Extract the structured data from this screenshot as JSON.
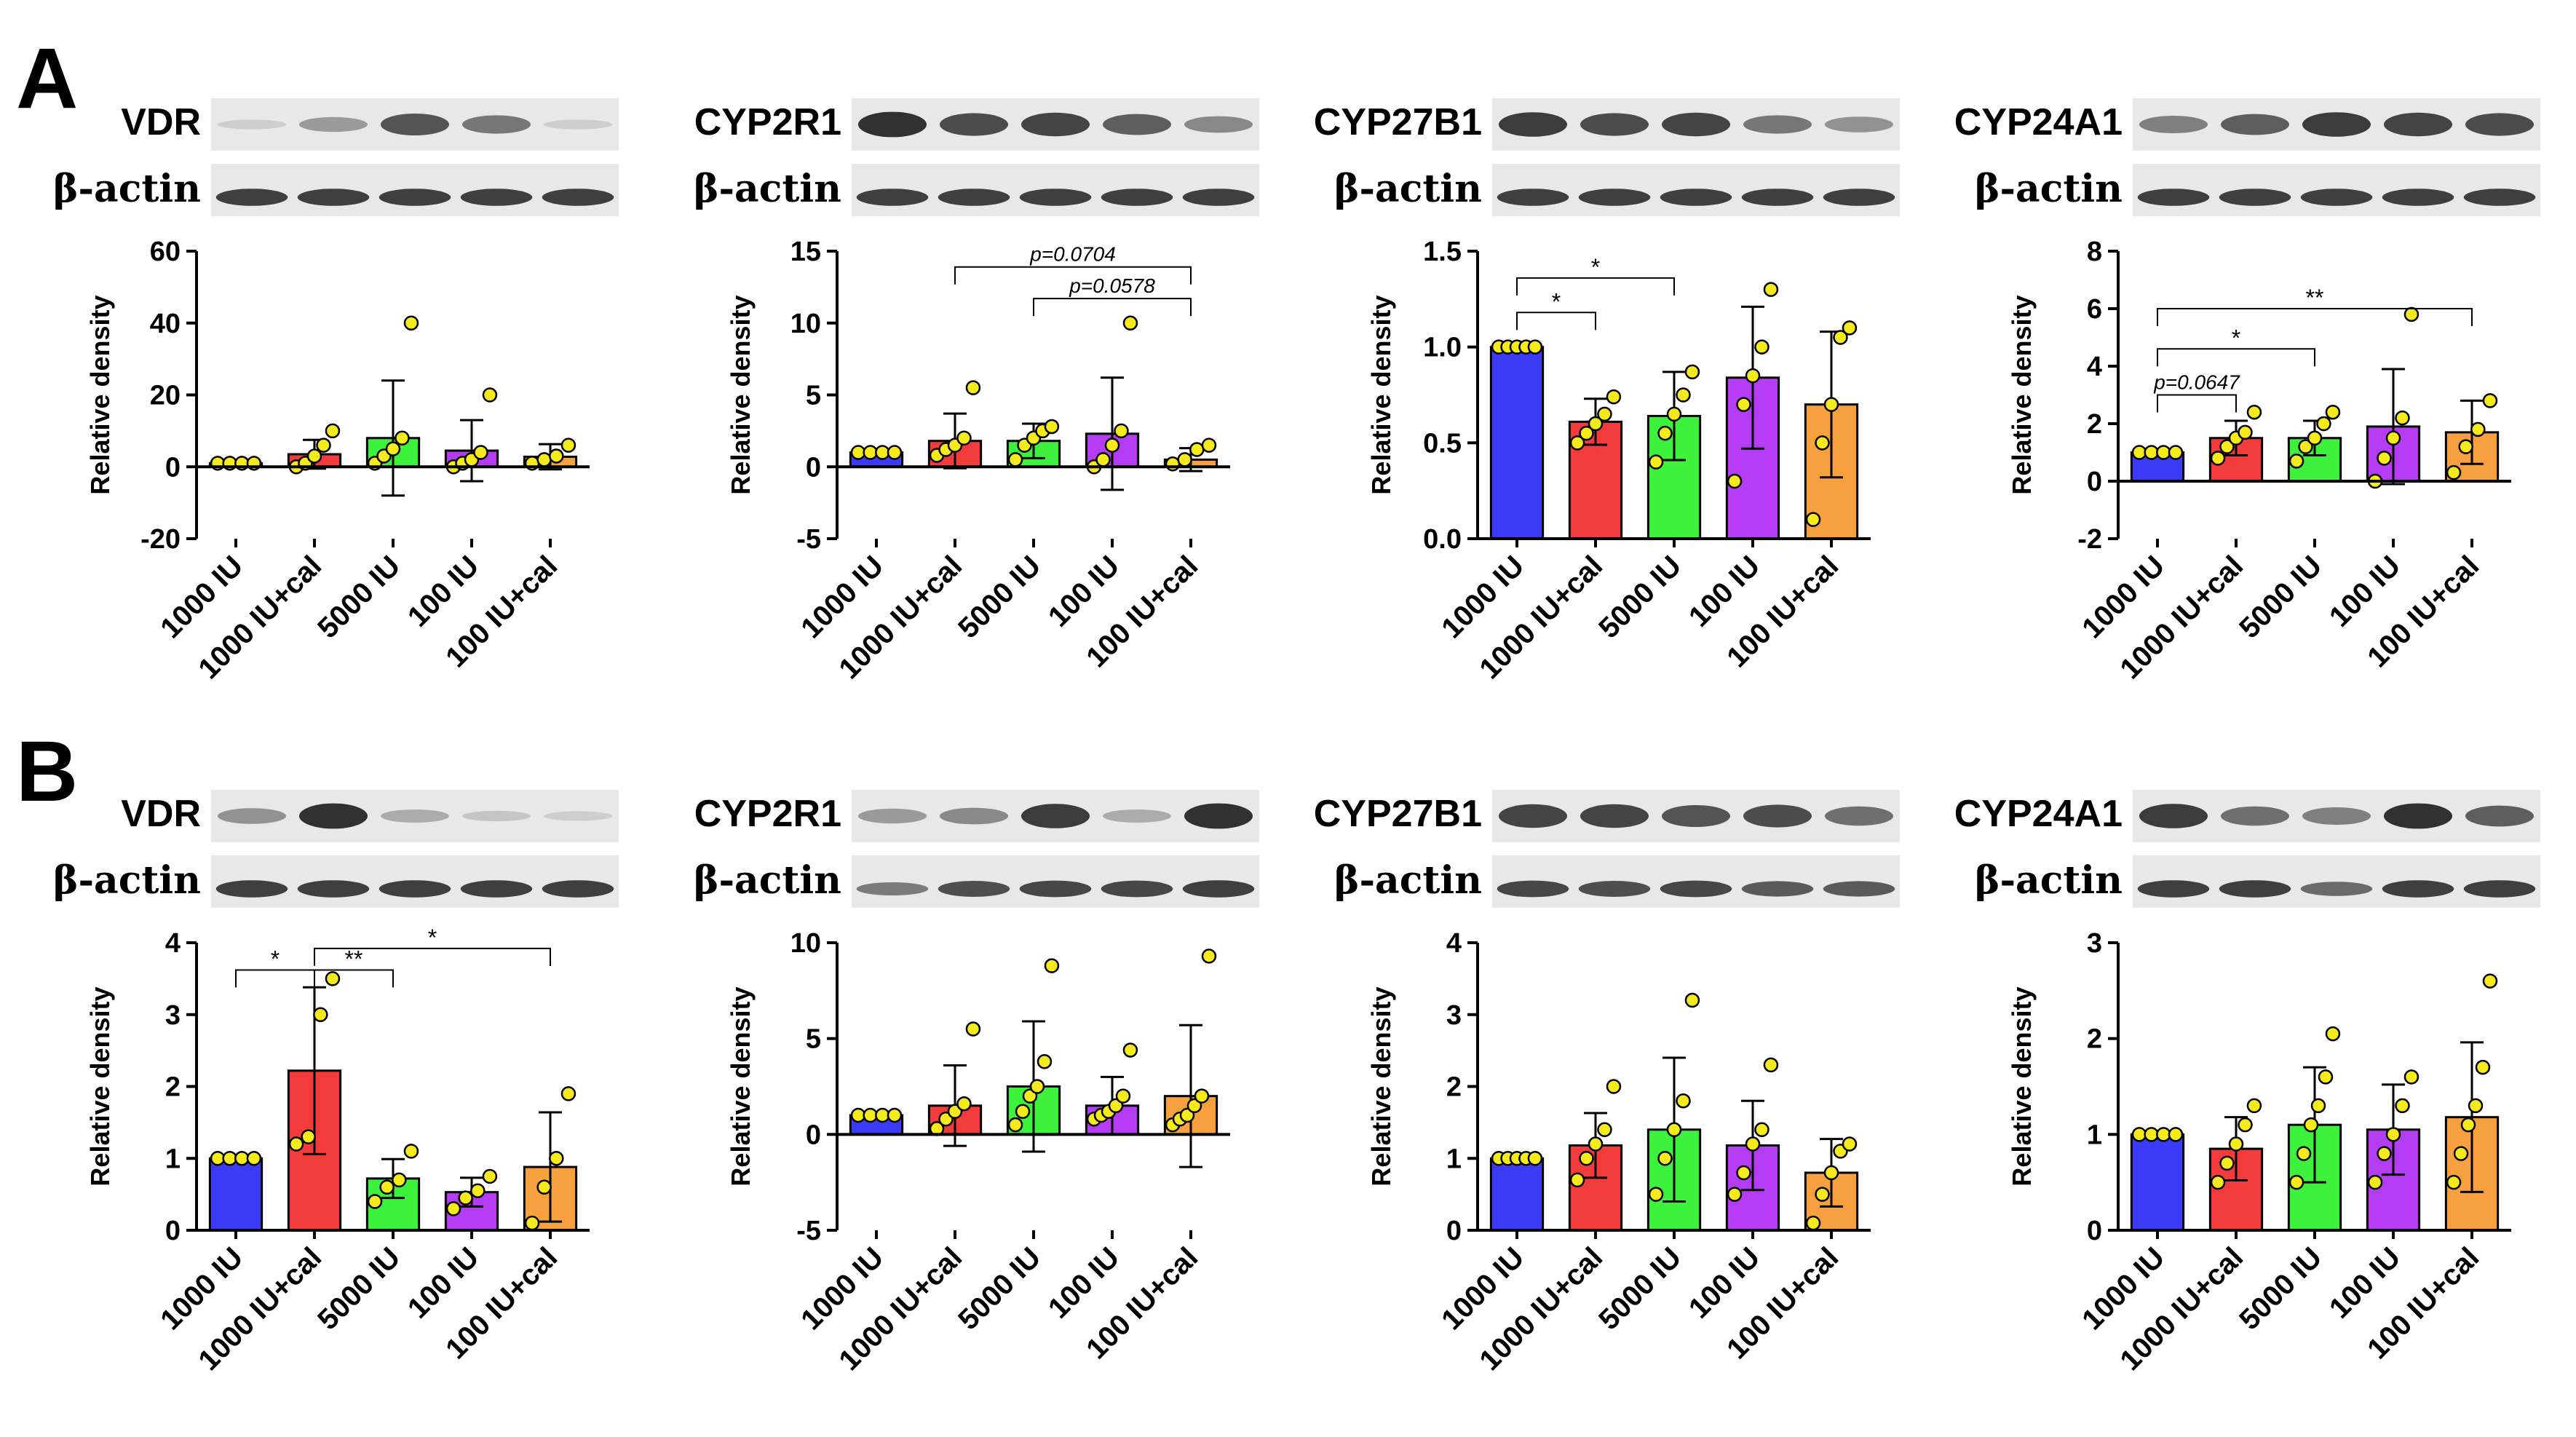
{
  "panels": [
    {
      "letter": "A"
    },
    {
      "letter": "B"
    }
  ],
  "colors": {
    "bars": [
      "#3b3bf5",
      "#f23c3c",
      "#3cf23c",
      "#b43cf2",
      "#f7a040"
    ],
    "points": "#f5ea1c",
    "blot_bg": "#e8e8e8",
    "band": "#1a1a1a"
  },
  "chart_data": [
    {
      "type": "bar",
      "row": 0,
      "protein": "VDR",
      "loading": "β-actin",
      "ylabel": "Relative density",
      "ylim": [
        -20,
        60
      ],
      "yticks": [
        -20,
        0,
        20,
        40,
        60
      ],
      "categories": [
        "1000 IU",
        "1000 IU+cal",
        "5000 IU",
        "100 IU",
        "100 IU+cal"
      ],
      "values": [
        1,
        3.5,
        8,
        4.5,
        2.8
      ],
      "sd": [
        0,
        4,
        16,
        8.5,
        3.5
      ],
      "points": [
        [
          1,
          1,
          1,
          1
        ],
        [
          0,
          1,
          3,
          6,
          10
        ],
        [
          1,
          3,
          5,
          8,
          40
        ],
        [
          0,
          1,
          2,
          4,
          20
        ],
        [
          1,
          2,
          3,
          6
        ]
      ],
      "bands_target": [
        0.05,
        0.35,
        0.75,
        0.55,
        0.05
      ],
      "bands_actin": [
        0.85,
        0.85,
        0.85,
        0.85,
        0.85
      ],
      "annotations": []
    },
    {
      "type": "bar",
      "row": 0,
      "protein": "CYP2R1",
      "loading": "β-actin",
      "ylabel": "Relative density",
      "ylim": [
        -5,
        15
      ],
      "yticks": [
        -5,
        0,
        5,
        10,
        15
      ],
      "categories": [
        "1000 IU",
        "1000 IU+cal",
        "5000 IU",
        "100 IU",
        "100 IU+cal"
      ],
      "values": [
        1,
        1.8,
        1.8,
        2.3,
        0.5
      ],
      "sd": [
        0,
        1.9,
        1.2,
        3.9,
        0.8
      ],
      "points": [
        [
          1,
          1,
          1,
          1
        ],
        [
          0.8,
          1.2,
          1.5,
          2,
          5.5
        ],
        [
          0.5,
          1.5,
          2,
          2.5,
          2.8
        ],
        [
          0,
          0.5,
          1.5,
          2.5,
          10
        ],
        [
          0.2,
          0.5,
          1.2,
          1.5
        ]
      ],
      "bands_target": [
        0.95,
        0.8,
        0.85,
        0.7,
        0.45
      ],
      "bands_actin": [
        0.85,
        0.85,
        0.85,
        0.85,
        0.85
      ],
      "annotations": [
        {
          "from": 1,
          "to": 4,
          "level": 13.9,
          "text": "p=0.0704"
        },
        {
          "from": 2,
          "to": 4,
          "level": 11.7,
          "text": "p=0.0578"
        }
      ]
    },
    {
      "type": "bar",
      "row": 0,
      "protein": "CYP27B1",
      "loading": "β-actin",
      "ylabel": "Relative density",
      "ylim": [
        0,
        1.5
      ],
      "yticks": [
        0.0,
        0.5,
        1.0,
        1.5
      ],
      "categories": [
        "1000 IU",
        "1000 IU+cal",
        "5000 IU",
        "100 IU",
        "100 IU+cal"
      ],
      "values": [
        1.0,
        0.61,
        0.64,
        0.84,
        0.7
      ],
      "sd": [
        0,
        0.12,
        0.23,
        0.37,
        0.38
      ],
      "points": [
        [
          1,
          1,
          1,
          1,
          1
        ],
        [
          0.5,
          0.55,
          0.6,
          0.65,
          0.74
        ],
        [
          0.4,
          0.55,
          0.65,
          0.75,
          0.87
        ],
        [
          0.3,
          0.7,
          0.85,
          1.0,
          1.3
        ],
        [
          0.1,
          0.5,
          0.7,
          1.05,
          1.1
        ]
      ],
      "bands_target": [
        0.9,
        0.8,
        0.85,
        0.55,
        0.4
      ],
      "bands_actin": [
        0.85,
        0.85,
        0.85,
        0.85,
        0.85
      ],
      "annotations": [
        {
          "from": 0,
          "to": 1,
          "level": 1.18,
          "text": "*"
        },
        {
          "from": 0,
          "to": 2,
          "level": 1.36,
          "text": "*"
        }
      ]
    },
    {
      "type": "bar",
      "row": 0,
      "protein": "CYP24A1",
      "loading": "β-actin",
      "ylabel": "Relative density",
      "ylim": [
        -2,
        8
      ],
      "yticks": [
        -2,
        0,
        2,
        4,
        6,
        8
      ],
      "categories": [
        "1000 IU",
        "1000 IU+cal",
        "5000 IU",
        "100 IU",
        "100 IU+cal"
      ],
      "values": [
        1,
        1.5,
        1.5,
        1.9,
        1.7
      ],
      "sd": [
        0,
        0.6,
        0.6,
        2.0,
        1.1
      ],
      "points": [
        [
          1,
          1,
          1,
          1
        ],
        [
          0.8,
          1.2,
          1.5,
          1.7,
          2.4
        ],
        [
          0.7,
          1.2,
          1.5,
          2.0,
          2.4
        ],
        [
          0,
          0.8,
          1.5,
          2.2,
          5.8
        ],
        [
          0.3,
          1.2,
          1.8,
          2.8
        ]
      ],
      "bands_target": [
        0.5,
        0.7,
        0.9,
        0.85,
        0.8
      ],
      "bands_actin": [
        0.85,
        0.85,
        0.85,
        0.85,
        0.85
      ],
      "annotations": [
        {
          "from": 0,
          "to": 1,
          "level": 3.0,
          "text": "p=0.0647",
          "italic": true
        },
        {
          "from": 0,
          "to": 2,
          "level": 4.6,
          "text": "*"
        },
        {
          "from": 0,
          "to": 4,
          "level": 6.0,
          "text": "**"
        }
      ]
    },
    {
      "type": "bar",
      "row": 1,
      "protein": "VDR",
      "loading": "β-actin",
      "ylabel": "Relative density",
      "ylim": [
        0,
        4
      ],
      "yticks": [
        0,
        1,
        2,
        3,
        4
      ],
      "categories": [
        "1000 IU",
        "1000 IU+cal",
        "5000 IU",
        "100 IU",
        "100 IU+cal"
      ],
      "values": [
        1.0,
        2.22,
        0.72,
        0.53,
        0.88
      ],
      "sd": [
        0,
        1.16,
        0.27,
        0.2,
        0.76
      ],
      "points": [
        [
          1,
          1,
          1,
          1
        ],
        [
          1.2,
          1.3,
          3.0,
          3.5
        ],
        [
          0.4,
          0.6,
          0.7,
          1.1
        ],
        [
          0.3,
          0.45,
          0.55,
          0.75
        ],
        [
          0.1,
          0.6,
          1.0,
          1.9
        ]
      ],
      "bands_target": [
        0.4,
        0.95,
        0.25,
        0.1,
        0.05
      ],
      "bands_actin": [
        0.85,
        0.85,
        0.85,
        0.85,
        0.85
      ],
      "annotations": [
        {
          "from": 0,
          "to": 1,
          "level": 3.62,
          "text": "*"
        },
        {
          "from": 1,
          "to": 2,
          "level": 3.62,
          "text": "**"
        },
        {
          "from": 1,
          "to": 4,
          "level": 3.92,
          "text": "*"
        }
      ]
    },
    {
      "type": "bar",
      "row": 1,
      "protein": "CYP2R1",
      "loading": "β-actin",
      "ylabel": "Relative density",
      "ylim": [
        -5,
        10
      ],
      "yticks": [
        -5,
        0,
        5,
        10
      ],
      "categories": [
        "1000 IU",
        "1000 IU+cal",
        "5000 IU",
        "100 IU",
        "100 IU+cal"
      ],
      "values": [
        1,
        1.5,
        2.5,
        1.5,
        2.0
      ],
      "sd": [
        0,
        2.1,
        3.4,
        1.5,
        3.7
      ],
      "points": [
        [
          1,
          1,
          1,
          1
        ],
        [
          0.3,
          0.8,
          1.2,
          1.6,
          5.5
        ],
        [
          0.5,
          1.2,
          2.0,
          2.5,
          3.8,
          8.8
        ],
        [
          0.8,
          1.0,
          1.2,
          1.5,
          2.0,
          4.4
        ],
        [
          0.5,
          0.8,
          1.0,
          1.5,
          2.0,
          9.3
        ]
      ],
      "bands_target": [
        0.35,
        0.45,
        0.9,
        0.25,
        0.95
      ],
      "bands_actin": [
        0.5,
        0.75,
        0.8,
        0.8,
        0.85
      ],
      "annotations": []
    },
    {
      "type": "bar",
      "row": 1,
      "protein": "CYP27B1",
      "loading": "β-actin",
      "ylabel": "Relative density",
      "ylim": [
        0,
        4
      ],
      "yticks": [
        0,
        1,
        2,
        3,
        4
      ],
      "categories": [
        "1000 IU",
        "1000 IU+cal",
        "5000 IU",
        "100 IU",
        "100 IU+cal"
      ],
      "values": [
        1.0,
        1.18,
        1.4,
        1.18,
        0.8
      ],
      "sd": [
        0,
        0.45,
        1.0,
        0.62,
        0.47
      ],
      "points": [
        [
          1,
          1,
          1,
          1,
          1
        ],
        [
          0.7,
          1.0,
          1.2,
          1.4,
          2.0
        ],
        [
          0.5,
          1.0,
          1.4,
          1.8,
          3.2
        ],
        [
          0.5,
          0.8,
          1.2,
          1.4,
          2.3
        ],
        [
          0.1,
          0.5,
          0.8,
          1.1,
          1.2
        ]
      ],
      "bands_target": [
        0.85,
        0.85,
        0.75,
        0.8,
        0.6
      ],
      "bands_actin": [
        0.8,
        0.75,
        0.8,
        0.7,
        0.7
      ],
      "annotations": []
    },
    {
      "type": "bar",
      "row": 1,
      "protein": "CYP24A1",
      "loading": "β-actin",
      "ylabel": "Relative density",
      "ylim": [
        0,
        3
      ],
      "yticks": [
        0,
        1,
        2,
        3
      ],
      "categories": [
        "1000 IU",
        "1000 IU+cal",
        "5000 IU",
        "100 IU",
        "100 IU+cal"
      ],
      "values": [
        1.0,
        0.85,
        1.1,
        1.05,
        1.18
      ],
      "sd": [
        0,
        0.33,
        0.6,
        0.47,
        0.78
      ],
      "points": [
        [
          1,
          1,
          1,
          1
        ],
        [
          0.5,
          0.7,
          0.9,
          1.1,
          1.3
        ],
        [
          0.5,
          0.8,
          1.1,
          1.3,
          1.6,
          2.05
        ],
        [
          0.5,
          0.8,
          1.0,
          1.3,
          1.6
        ],
        [
          0.5,
          0.8,
          1.1,
          1.3,
          1.7,
          2.6
        ]
      ],
      "bands_target": [
        0.9,
        0.6,
        0.5,
        0.95,
        0.7
      ],
      "bands_actin": [
        0.85,
        0.85,
        0.6,
        0.85,
        0.85
      ],
      "annotations": []
    }
  ]
}
